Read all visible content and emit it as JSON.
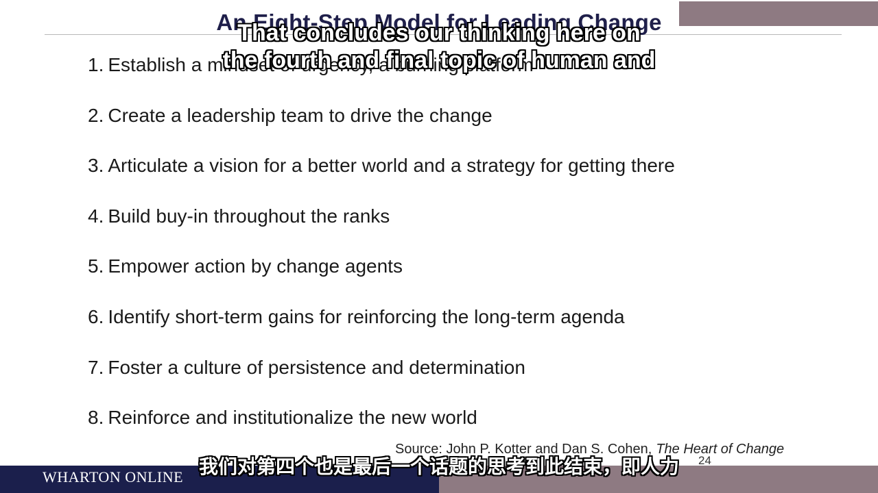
{
  "slide": {
    "title": "An Eight-Step Model for Leading Change",
    "steps": [
      {
        "number": "1.",
        "text": "Establish a mindset of urgency, a burning platform"
      },
      {
        "number": "2.",
        "text": "Create a leadership team to drive the change"
      },
      {
        "number": "3.",
        "text": "Articulate a vision for a better world and a strategy for getting there"
      },
      {
        "number": "4.",
        "text": "Build buy-in throughout the ranks"
      },
      {
        "number": "5.",
        "text": "Empower action by change agents"
      },
      {
        "number": "6.",
        "text": "Identify short-term gains for reinforcing the long-term agenda"
      },
      {
        "number": "7.",
        "text": "Foster a culture of persistence and determination"
      },
      {
        "number": "8.",
        "text": "Reinforce and institutionalize the new world"
      }
    ],
    "source_prefix": "Source:   John P. Kotter and Dan S. Cohen,",
    "source_book": "The Heart of Change",
    "page_number": "24"
  },
  "footer": {
    "brand": "WHARTON ONLINE",
    "left_color": "#1b1f4c",
    "right_color": "#8e7a82"
  },
  "subtitles": {
    "english_line1": "That concludes our thinking here on",
    "english_line2": "the fourth and final topic of human and",
    "chinese": "我们对第四个也是最后一个话题的思考到此结束，即人力"
  },
  "colors": {
    "title": "#1f1f4a",
    "accent": "#8e7a82"
  }
}
